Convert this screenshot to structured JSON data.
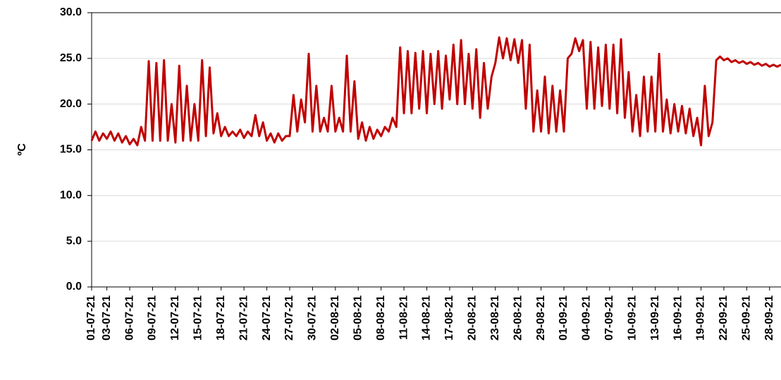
{
  "chart_data": {
    "type": "line",
    "y_label": "ºC",
    "ylim": [
      0,
      30
    ],
    "yticks": [
      {
        "value": 0,
        "label": "0.0"
      },
      {
        "value": 5,
        "label": "5.0"
      },
      {
        "value": 10,
        "label": "10.0"
      },
      {
        "value": 15,
        "label": "15.0"
      },
      {
        "value": 20,
        "label": "20.0"
      },
      {
        "value": 25,
        "label": "25.0"
      },
      {
        "value": 30,
        "label": "30.0"
      }
    ],
    "grid": true,
    "color": "#c00000",
    "x": [
      "01-07-21",
      null,
      null,
      null,
      "03-07-21",
      null,
      null,
      null,
      null,
      null,
      "06-07-21",
      null,
      null,
      null,
      null,
      null,
      "09-07-21",
      null,
      null,
      null,
      null,
      null,
      "12-07-21",
      null,
      null,
      null,
      null,
      null,
      "15-07-21",
      null,
      null,
      null,
      null,
      null,
      "18-07-21",
      null,
      null,
      null,
      null,
      null,
      "21-07-21",
      null,
      null,
      null,
      null,
      null,
      "24-07-21",
      null,
      null,
      null,
      null,
      null,
      "27-07-21",
      null,
      null,
      null,
      null,
      null,
      "30-07-21",
      null,
      null,
      null,
      null,
      null,
      "02-08-21",
      null,
      null,
      null,
      null,
      null,
      "05-08-21",
      null,
      null,
      null,
      null,
      null,
      "08-08-21",
      null,
      null,
      null,
      null,
      null,
      "11-08-21",
      null,
      null,
      null,
      null,
      null,
      "14-08-21",
      null,
      null,
      null,
      null,
      null,
      "17-08-21",
      null,
      null,
      null,
      null,
      null,
      "20-08-21",
      null,
      null,
      null,
      null,
      null,
      "23-08-21",
      null,
      null,
      null,
      null,
      null,
      "26-08-21",
      null,
      null,
      null,
      null,
      null,
      "29-08-21",
      null,
      null,
      null,
      null,
      null,
      "01-09-21",
      null,
      null,
      null,
      null,
      null,
      "04-09-21",
      null,
      null,
      null,
      null,
      null,
      "07-09-21",
      null,
      null,
      null,
      null,
      null,
      "10-09-21",
      null,
      null,
      null,
      null,
      null,
      "13-09-21",
      null,
      null,
      null,
      null,
      null,
      "16-09-21",
      null,
      null,
      null,
      null,
      null,
      "19-09-21",
      null,
      null,
      null,
      null,
      null,
      "22-09-21",
      null,
      null,
      null,
      null,
      null,
      "25-09-21",
      null,
      null,
      null,
      null,
      null,
      "28-09-21",
      null,
      null,
      null
    ],
    "values": [
      16,
      17,
      16,
      16.8,
      16.2,
      17,
      16,
      16.8,
      15.8,
      16.5,
      15.6,
      16.2,
      15.5,
      17.5,
      16,
      24.7,
      16,
      24.5,
      16,
      24.8,
      16,
      20,
      15.8,
      24.2,
      16,
      22,
      16,
      20,
      16,
      24.8,
      16.5,
      24,
      16.8,
      19,
      16.5,
      17.5,
      16.5,
      17,
      16.5,
      17.2,
      16.3,
      17,
      16.5,
      18.8,
      16.5,
      18,
      16,
      16.8,
      15.8,
      16.8,
      16,
      16.5,
      16.5,
      21,
      17,
      20.5,
      18,
      25.5,
      17,
      22,
      17,
      18.5,
      17,
      22,
      17,
      18.5,
      17,
      25.3,
      17,
      22.5,
      16.2,
      18,
      16,
      17.5,
      16.2,
      17.2,
      16.5,
      17.5,
      17,
      18.5,
      17.5,
      26.2,
      19,
      25.8,
      19,
      25.6,
      19.5,
      25.8,
      19,
      25.5,
      20,
      25.8,
      19.5,
      25.3,
      20.5,
      26.5,
      20,
      27,
      20,
      25.5,
      19.5,
      26,
      18.5,
      24.5,
      19.5,
      23,
      24.5,
      27.3,
      25,
      27.2,
      24.8,
      27.1,
      24.5,
      27,
      19.5,
      26.5,
      17,
      21.5,
      17,
      23,
      16.8,
      22,
      17,
      21.5,
      17,
      25,
      25.5,
      27.2,
      25.8,
      27,
      19.5,
      26.8,
      19.5,
      26.2,
      19.8,
      26.5,
      19.5,
      26.5,
      19,
      27.1,
      18.5,
      23.5,
      17,
      21,
      16.5,
      23,
      17,
      23,
      17,
      25.5,
      17,
      20.5,
      16.8,
      20,
      17,
      19.8,
      16.8,
      19.5,
      16.5,
      18.5,
      15.5,
      22,
      16.5,
      18,
      24.8,
      25.2,
      24.8,
      25,
      24.6,
      24.8,
      24.5,
      24.7,
      24.4,
      24.6,
      24.3,
      24.5,
      24.2,
      24.4,
      24.1,
      24.3,
      24.1,
      24.3
    ]
  }
}
